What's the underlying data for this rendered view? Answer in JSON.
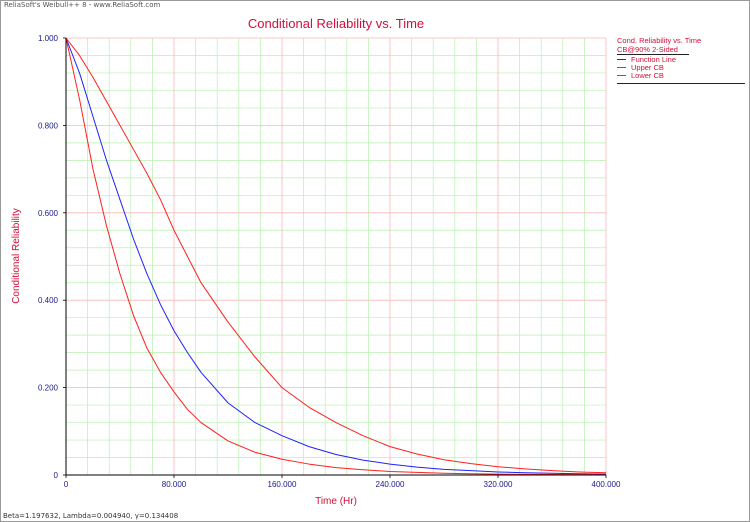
{
  "header": {
    "credit": "ReliaSoft's Weibull++ 8 - www.ReliaSoft.com"
  },
  "footer": {
    "params": "Beta=1.197632, Lambda=0.004940, γ=0.134408"
  },
  "legend": {
    "title": "Cond. Reliability vs. Time",
    "subtitle": "CB@90% 2-Sided",
    "items": [
      {
        "label": "Function Line",
        "color": "#2020ff"
      },
      {
        "label": "Upper CB",
        "color": "#ff2020"
      },
      {
        "label": "Lower CB",
        "color": "#ff2020"
      }
    ]
  },
  "chart_data": {
    "type": "line",
    "title": "Conditional Reliability vs. Time",
    "xlabel": "Time (Hr)",
    "ylabel": "Conditional Reliability",
    "xlim": [
      0,
      400
    ],
    "ylim": [
      0,
      1
    ],
    "x_ticks": [
      "0",
      "80.000",
      "160.000",
      "240.000",
      "320.000",
      "400.000"
    ],
    "y_ticks": [
      "0",
      "0.200",
      "0.400",
      "0.600",
      "0.800",
      "1.000"
    ],
    "grid": true,
    "x": [
      0,
      10,
      20,
      30,
      40,
      50,
      60,
      70,
      80,
      90,
      100,
      120,
      140,
      160,
      180,
      200,
      220,
      240,
      260,
      280,
      300,
      320,
      340,
      360,
      380,
      400
    ],
    "series": [
      {
        "name": "Function Line",
        "color": "#2020ff",
        "values": [
          1.0,
          0.92,
          0.82,
          0.72,
          0.63,
          0.54,
          0.46,
          0.39,
          0.33,
          0.28,
          0.235,
          0.165,
          0.12,
          0.09,
          0.065,
          0.047,
          0.034,
          0.025,
          0.018,
          0.013,
          0.01,
          0.007,
          0.005,
          0.004,
          0.003,
          0.002
        ]
      },
      {
        "name": "Upper CB",
        "color": "#ff2020",
        "values": [
          1.0,
          0.96,
          0.91,
          0.855,
          0.8,
          0.745,
          0.69,
          0.63,
          0.56,
          0.5,
          0.44,
          0.35,
          0.27,
          0.2,
          0.155,
          0.12,
          0.09,
          0.065,
          0.048,
          0.035,
          0.026,
          0.019,
          0.014,
          0.01,
          0.007,
          0.005
        ]
      },
      {
        "name": "Lower CB",
        "color": "#ff2020",
        "values": [
          1.0,
          0.86,
          0.7,
          0.57,
          0.46,
          0.365,
          0.29,
          0.235,
          0.19,
          0.15,
          0.12,
          0.078,
          0.052,
          0.036,
          0.025,
          0.017,
          0.012,
          0.008,
          0.006,
          0.004,
          0.003,
          0.002,
          0.0015,
          0.001,
          0.0008,
          0.0005
        ]
      }
    ]
  }
}
